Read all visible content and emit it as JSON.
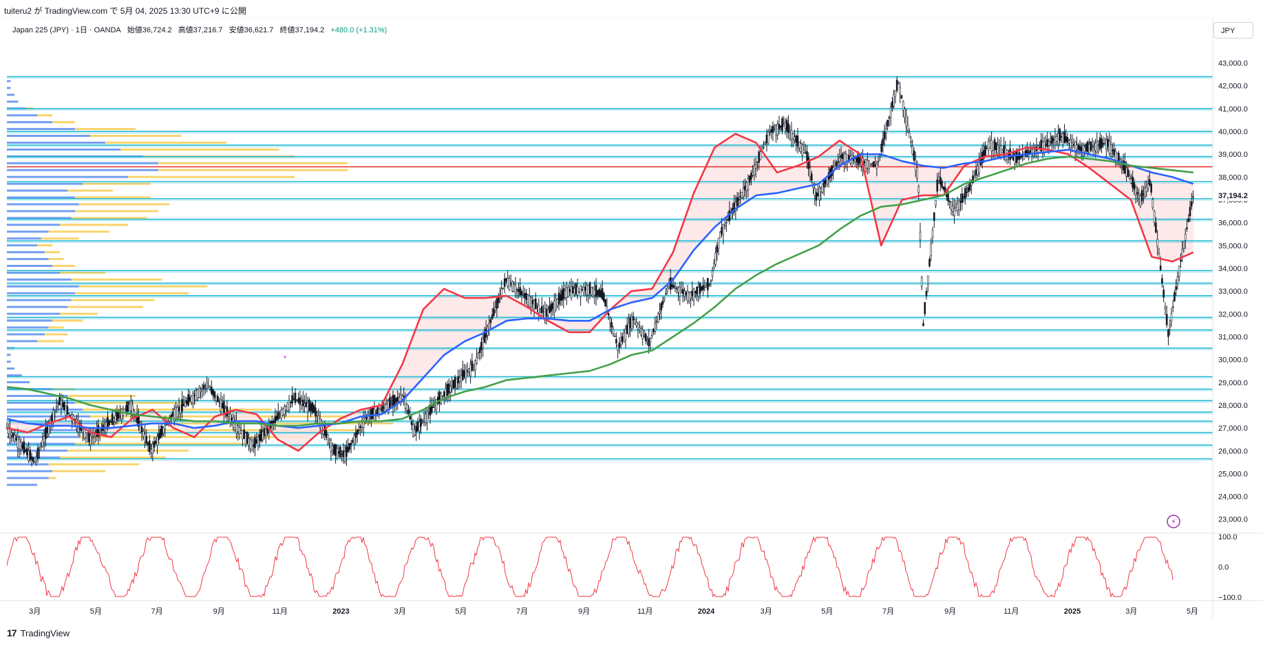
{
  "header": {
    "publish_line": "tuiteru2 が TradingView.com で 5月 04, 2025 13:30 UTC+9 に公開",
    "symbol_line": "Japan 225 (JPY) · 1日 · OANDA",
    "open": "始値36,724.2",
    "high": "高値37,216.7",
    "low": "安値36,621.7",
    "close": "終値37,194.2",
    "change": "+480.0 (+1.31%)",
    "currency": "JPY"
  },
  "footer": {
    "brand": "TradingView",
    "logo": "17"
  },
  "colors": {
    "hline": "#1fb8d3",
    "redline": "#e53935",
    "ma_fast": "#f23645",
    "ma_mid": "#2962ff",
    "ma_slow": "#43a047",
    "vp_up": "#5b8def",
    "vp_down": "#f7c948",
    "osc": "#f23645",
    "up_fill": "#fde3e3",
    "down_fill": "#dfe8fb"
  },
  "chart_data": {
    "type": "candlestick",
    "symbol": "Japan 225 (JPY)",
    "timeframe": "1日",
    "source": "OANDA",
    "price_axis": {
      "ticks": [
        23000,
        24000,
        25000,
        26000,
        27000,
        28000,
        29000,
        30000,
        31000,
        32000,
        33000,
        34000,
        35000,
        36000,
        37000,
        38000,
        39000,
        40000,
        41000,
        42000,
        43000
      ],
      "tick_labels": [
        "23,000.0",
        "24,000.0",
        "25,000.0",
        "26,000.0",
        "27,000.0",
        "28,000.0",
        "29,000.0",
        "30,000.0",
        "31,000.0",
        "32,000.0",
        "33,000.0",
        "34,000.0",
        "35,000.0",
        "36,000.0",
        "37,000.0",
        "38,000.0",
        "39,000.0",
        "40,000.0",
        "41,000.0",
        "42,000.0",
        "43,000.0"
      ],
      "ylim": [
        22600,
        43500
      ],
      "last_price_label": "37,194.2"
    },
    "time_axis": {
      "labels": [
        "3月",
        "5月",
        "7月",
        "9月",
        "11月",
        "2023",
        "3月",
        "5月",
        "7月",
        "9月",
        "11月",
        "2024",
        "3月",
        "5月",
        "7月",
        "9月",
        "11月",
        "2025",
        "3月",
        "5月"
      ]
    },
    "horizontal_levels": [
      42400,
      41000,
      40000,
      39400,
      38900,
      37800,
      37050,
      36150,
      35200,
      33900,
      33350,
      32800,
      31850,
      31300,
      30500,
      29250,
      28700,
      28200,
      27700,
      27300,
      26800,
      26250,
      25650
    ],
    "red_level": 38450,
    "price_path": [
      [
        "2022-02-01",
        27000
      ],
      [
        "2022-03-01",
        25500
      ],
      [
        "2022-03-25",
        28200
      ],
      [
        "2022-04-25",
        26500
      ],
      [
        "2022-06-05",
        28000
      ],
      [
        "2022-06-25",
        26000
      ],
      [
        "2022-07-15",
        27500
      ],
      [
        "2022-08-20",
        28900
      ],
      [
        "2022-09-20",
        27000
      ],
      [
        "2022-10-05",
        26200
      ],
      [
        "2022-11-15",
        28300
      ],
      [
        "2022-12-05",
        27800
      ],
      [
        "2022-12-25",
        26000
      ],
      [
        "2023-01-05",
        25800
      ],
      [
        "2023-01-25",
        27400
      ],
      [
        "2023-03-05",
        28400
      ],
      [
        "2023-03-15",
        26800
      ],
      [
        "2023-04-10",
        28300
      ],
      [
        "2023-05-15",
        29800
      ],
      [
        "2023-05-25",
        31000
      ],
      [
        "2023-06-15",
        33500
      ],
      [
        "2023-06-25",
        33100
      ],
      [
        "2023-07-25",
        32000
      ],
      [
        "2023-08-15",
        33000
      ],
      [
        "2023-09-05",
        33100
      ],
      [
        "2023-09-20",
        32800
      ],
      [
        "2023-10-05",
        30500
      ],
      [
        "2023-10-20",
        31800
      ],
      [
        "2023-11-05",
        30700
      ],
      [
        "2023-11-25",
        33300
      ],
      [
        "2023-12-15",
        32800
      ],
      [
        "2024-01-05",
        33300
      ],
      [
        "2024-01-15",
        35500
      ],
      [
        "2024-02-15",
        38000
      ],
      [
        "2024-03-05",
        40000
      ],
      [
        "2024-03-20",
        40300
      ],
      [
        "2024-04-10",
        39000
      ],
      [
        "2024-04-20",
        37100
      ],
      [
        "2024-05-15",
        38900
      ],
      [
        "2024-06-20",
        38500
      ],
      [
        "2024-07-11",
        42200
      ],
      [
        "2024-07-31",
        38000
      ],
      [
        "2024-08-05",
        31500
      ],
      [
        "2024-08-20",
        38000
      ],
      [
        "2024-09-05",
        36500
      ],
      [
        "2024-09-20",
        37500
      ],
      [
        "2024-10-10",
        39500
      ],
      [
        "2024-11-05",
        38800
      ],
      [
        "2024-12-05",
        39400
      ],
      [
        "2024-12-20",
        39800
      ],
      [
        "2025-01-10",
        39200
      ],
      [
        "2025-02-05",
        39500
      ],
      [
        "2025-02-25",
        38200
      ],
      [
        "2025-03-10",
        37000
      ],
      [
        "2025-03-20",
        37800
      ],
      [
        "2025-04-07",
        31100
      ],
      [
        "2025-04-20",
        34500
      ],
      [
        "2025-05-02",
        37194
      ]
    ],
    "series": [
      {
        "name": "",
        "color": "#f23645",
        "values": [
          27000,
          26800,
          27200,
          27500,
          26800,
          26600,
          27400,
          27800,
          27000,
          26600,
          27500,
          27800,
          27600,
          26500,
          26000,
          26800,
          27400,
          27800,
          28000,
          29800,
          32200,
          33100,
          32700,
          32700,
          32800,
          32300,
          31700,
          31200,
          31200,
          32200,
          33000,
          33100,
          34700,
          37300,
          39300,
          39900,
          39500,
          38200,
          38500,
          38900,
          39600,
          39000,
          35000,
          37000,
          37200,
          37200,
          38500,
          38900,
          39000,
          39300,
          39200,
          39000,
          38400,
          37700,
          37000,
          34500,
          34300,
          34700
        ]
      },
      {
        "name": "",
        "color": "#2962ff",
        "values": [
          27400,
          27200,
          27100,
          27100,
          27000,
          27000,
          27100,
          27200,
          27200,
          27000,
          27100,
          27300,
          27300,
          27100,
          27000,
          27100,
          27200,
          27500,
          27600,
          28200,
          29200,
          30200,
          30800,
          31200,
          31700,
          31800,
          31800,
          31700,
          31700,
          32200,
          32500,
          32700,
          33500,
          34800,
          35800,
          36600,
          37200,
          37300,
          37500,
          37700,
          38500,
          39000,
          39000,
          38700,
          38500,
          38400,
          38600,
          38700,
          38900,
          39000,
          39100,
          39200,
          39000,
          38800,
          38500,
          38200,
          38000,
          37700
        ]
      },
      {
        "name": "",
        "color": "#43a047",
        "values": [
          28800,
          28700,
          28500,
          28300,
          28000,
          27800,
          27600,
          27500,
          27400,
          27300,
          27300,
          27200,
          27200,
          27100,
          27100,
          27200,
          27200,
          27300,
          27300,
          27400,
          27800,
          28300,
          28600,
          28800,
          29100,
          29200,
          29300,
          29400,
          29500,
          29800,
          30200,
          30400,
          31000,
          31600,
          32300,
          33100,
          33700,
          34200,
          34600,
          35000,
          35700,
          36300,
          36700,
          36800,
          37000,
          37200,
          37700,
          38000,
          38300,
          38600,
          38800,
          38900,
          38800,
          38700,
          38500,
          38400,
          38300,
          38200
        ]
      }
    ],
    "volume_profile": {
      "rows": [
        [
          24500,
          40,
          0
        ],
        [
          24800,
          55,
          10
        ],
        [
          25100,
          60,
          70
        ],
        [
          25400,
          55,
          120
        ],
        [
          25700,
          70,
          140
        ],
        [
          26000,
          80,
          160
        ],
        [
          26300,
          90,
          230
        ],
        [
          26600,
          95,
          300
        ],
        [
          26900,
          110,
          360
        ],
        [
          27200,
          120,
          390
        ],
        [
          27500,
          110,
          340
        ],
        [
          27800,
          100,
          250
        ],
        [
          28100,
          90,
          160
        ],
        [
          28400,
          80,
          90
        ],
        [
          28700,
          60,
          30
        ],
        [
          29000,
          30,
          0
        ],
        [
          29300,
          20,
          0
        ],
        [
          29600,
          10,
          0
        ],
        [
          29900,
          5,
          0
        ],
        [
          30200,
          5,
          0
        ],
        [
          30500,
          10,
          0
        ],
        [
          30800,
          40,
          35
        ],
        [
          31100,
          50,
          30
        ],
        [
          31400,
          55,
          20
        ],
        [
          31700,
          60,
          40
        ],
        [
          32000,
          70,
          50
        ],
        [
          32300,
          80,
          100
        ],
        [
          32600,
          85,
          110
        ],
        [
          32900,
          90,
          150
        ],
        [
          33200,
          95,
          170
        ],
        [
          33500,
          85,
          120
        ],
        [
          33800,
          70,
          60
        ],
        [
          34100,
          60,
          30
        ],
        [
          34400,
          55,
          20
        ],
        [
          34700,
          50,
          20
        ],
        [
          35000,
          40,
          20
        ],
        [
          35300,
          45,
          50
        ],
        [
          35600,
          55,
          80
        ],
        [
          35900,
          70,
          90
        ],
        [
          36200,
          85,
          100
        ],
        [
          36500,
          90,
          110
        ],
        [
          36800,
          95,
          120
        ],
        [
          37100,
          90,
          100
        ],
        [
          37400,
          80,
          60
        ],
        [
          37700,
          100,
          90
        ],
        [
          38000,
          160,
          220
        ],
        [
          38300,
          200,
          250
        ],
        [
          38600,
          200,
          250
        ],
        [
          38900,
          180,
          200
        ],
        [
          39200,
          150,
          210
        ],
        [
          39500,
          130,
          160
        ],
        [
          39800,
          110,
          120
        ],
        [
          40100,
          90,
          80
        ],
        [
          40400,
          60,
          30
        ],
        [
          40700,
          40,
          20
        ],
        [
          41000,
          25,
          10
        ],
        [
          41300,
          15,
          0
        ],
        [
          41600,
          10,
          0
        ],
        [
          41900,
          5,
          0
        ],
        [
          42200,
          5,
          0
        ]
      ]
    },
    "oscillator": {
      "ylim": [
        -100,
        100
      ],
      "tick_labels": [
        "100.0",
        "0.0",
        "−100.0"
      ]
    },
    "legend": "none"
  }
}
